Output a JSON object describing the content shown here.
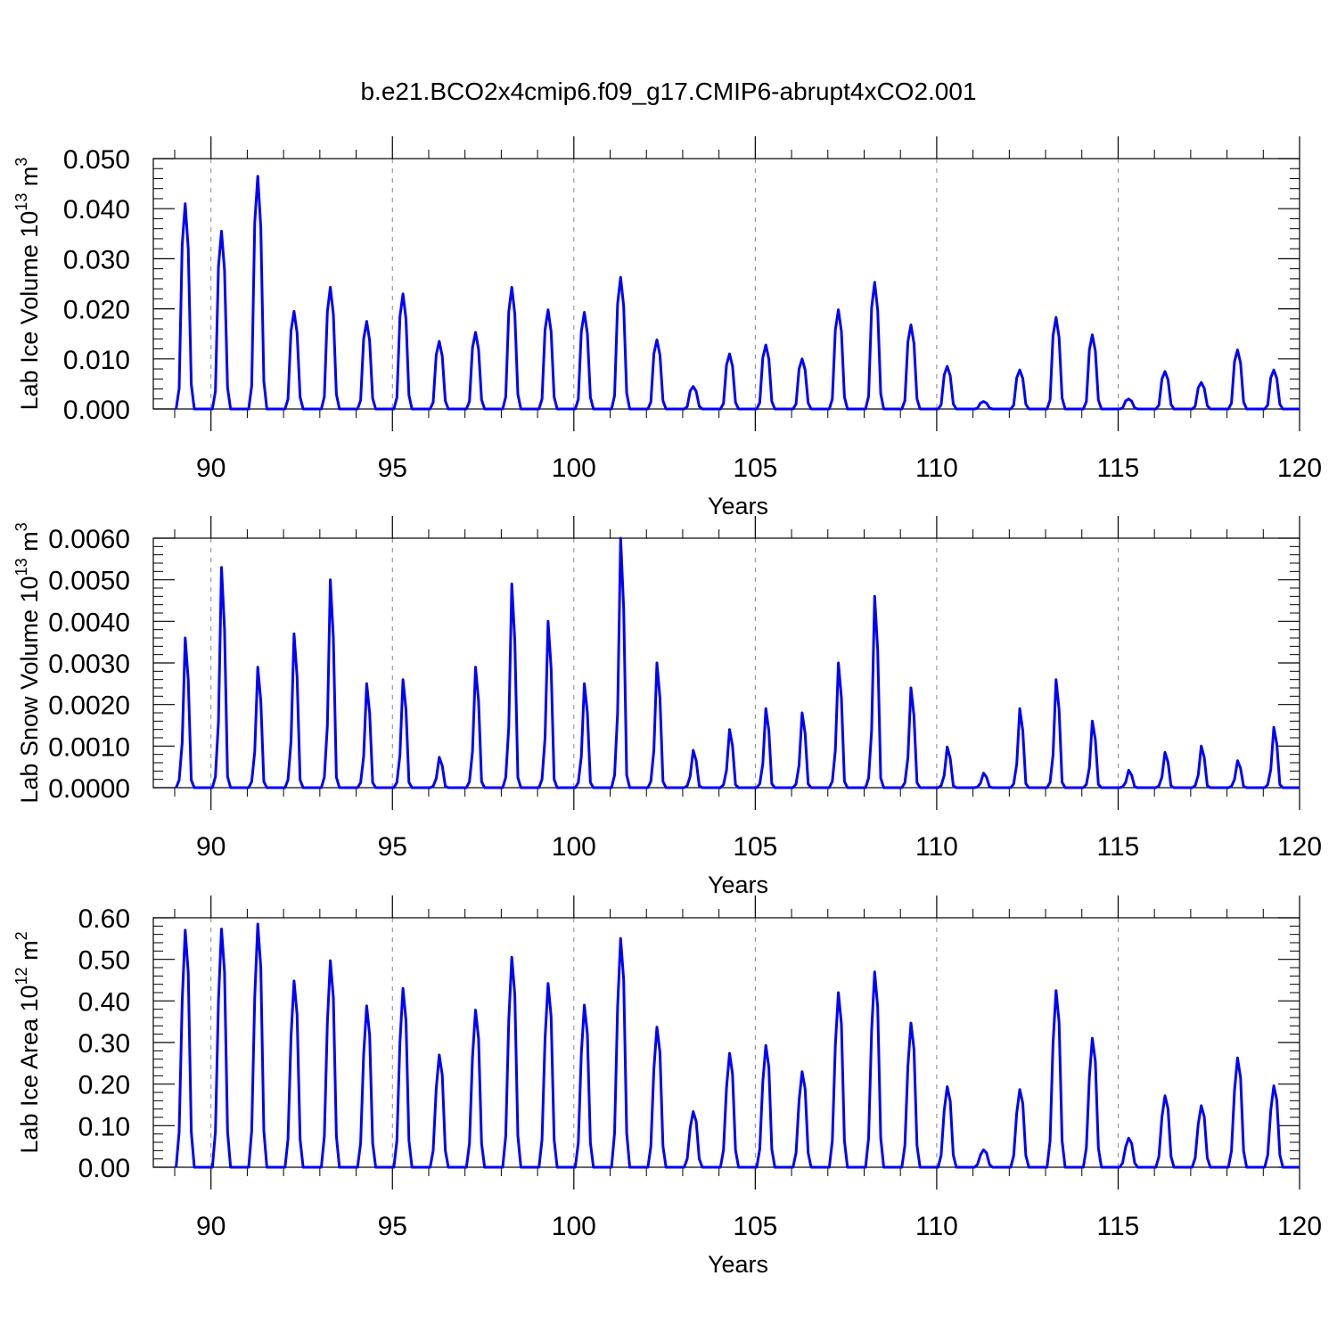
{
  "title": "b.e21.BCO2x4cmip6.f09_g17.CMIP6-abrupt4xCO2.001",
  "colors": {
    "series": "#0000ff",
    "axis": "#000000",
    "grid": "#888888"
  },
  "chart_data": [
    {
      "type": "line",
      "ylabel_main": "Lab Ice Volume 10",
      "ylabel_exp": "13",
      "ylabel_unit": " m",
      "ylabel_unit_exp": "3",
      "xlabel": "Years",
      "xlim": [
        89,
        120
      ],
      "ylim": [
        0,
        0.05
      ],
      "yticks": [
        0,
        0.01,
        0.02,
        0.03,
        0.04,
        0.05
      ],
      "ytick_labels": [
        "0.000",
        "0.010",
        "0.020",
        "0.030",
        "0.040",
        "0.050"
      ],
      "xticks": [
        90,
        95,
        100,
        105,
        110,
        115,
        120
      ],
      "xtick_labels": [
        "90",
        "95",
        "100",
        "105",
        "110",
        "115",
        "120"
      ],
      "grid_x": [
        90,
        95,
        100,
        105,
        110,
        115
      ],
      "peaks": [
        0.041,
        0.0355,
        0.0465,
        0.0195,
        0.0243,
        0.0175,
        0.023,
        0.0135,
        0.0153,
        0.0243,
        0.0198,
        0.0193,
        0.0263,
        0.0138,
        0.0045,
        0.011,
        0.0128,
        0.01,
        0.0198,
        0.0253,
        0.0168,
        0.0085,
        0.0015,
        0.0078,
        0.0183,
        0.0148,
        0.002,
        0.0075,
        0.0053,
        0.0118,
        0.0078
      ],
      "profile": [
        0,
        0.1,
        0.8,
        1.0,
        0.78,
        0.12,
        0,
        0,
        0,
        0,
        0,
        0
      ]
    },
    {
      "type": "line",
      "ylabel_main": "Lab Snow Volume 10",
      "ylabel_exp": "13",
      "ylabel_unit": " m",
      "ylabel_unit_exp": "3",
      "xlabel": "Years",
      "xlim": [
        89,
        120
      ],
      "ylim": [
        0,
        0.006
      ],
      "yticks": [
        0,
        0.001,
        0.002,
        0.003,
        0.004,
        0.005,
        0.006
      ],
      "ytick_labels": [
        "0.0000",
        "0.0010",
        "0.0020",
        "0.0030",
        "0.0040",
        "0.0050",
        "0.0060"
      ],
      "xticks": [
        90,
        95,
        100,
        105,
        110,
        115,
        120
      ],
      "xtick_labels": [
        "90",
        "95",
        "100",
        "105",
        "110",
        "115",
        "120"
      ],
      "grid_x": [
        90,
        95,
        100,
        105,
        110,
        115
      ],
      "peaks": [
        0.0036,
        0.0053,
        0.0029,
        0.0037,
        0.005,
        0.0025,
        0.0026,
        0.00073,
        0.0029,
        0.0049,
        0.004,
        0.0025,
        0.006,
        0.003,
        0.0009,
        0.0014,
        0.0019,
        0.0018,
        0.003,
        0.0046,
        0.0024,
        0.00098,
        0.00035,
        0.0019,
        0.0026,
        0.0016,
        0.00042,
        0.00085,
        0.001,
        0.00065,
        0.00145
      ],
      "profile": [
        0,
        0.05,
        0.3,
        1.0,
        0.72,
        0.05,
        0,
        0,
        0,
        0,
        0,
        0
      ]
    },
    {
      "type": "line",
      "ylabel_main": "Lab Ice Area 10",
      "ylabel_exp": "12",
      "ylabel_unit": " m",
      "ylabel_unit_exp": "2",
      "xlabel": "Years",
      "xlim": [
        89,
        120
      ],
      "ylim": [
        0,
        0.6
      ],
      "yticks": [
        0,
        0.1,
        0.2,
        0.3,
        0.4,
        0.5,
        0.6
      ],
      "ytick_labels": [
        "0.00",
        "0.10",
        "0.20",
        "0.30",
        "0.40",
        "0.50",
        "0.60"
      ],
      "xticks": [
        90,
        95,
        100,
        105,
        110,
        115,
        120
      ],
      "xtick_labels": [
        "90",
        "95",
        "100",
        "105",
        "110",
        "115",
        "120"
      ],
      "grid_x": [
        90,
        95,
        100,
        105,
        110,
        115
      ],
      "peaks": [
        0.57,
        0.573,
        0.585,
        0.448,
        0.497,
        0.388,
        0.43,
        0.27,
        0.378,
        0.505,
        0.442,
        0.39,
        0.55,
        0.337,
        0.134,
        0.274,
        0.293,
        0.23,
        0.42,
        0.47,
        0.347,
        0.194,
        0.042,
        0.187,
        0.425,
        0.31,
        0.07,
        0.172,
        0.148,
        0.263,
        0.196
      ],
      "profile": [
        0,
        0.15,
        0.7,
        1.0,
        0.82,
        0.15,
        0,
        0,
        0,
        0,
        0,
        0
      ]
    }
  ]
}
